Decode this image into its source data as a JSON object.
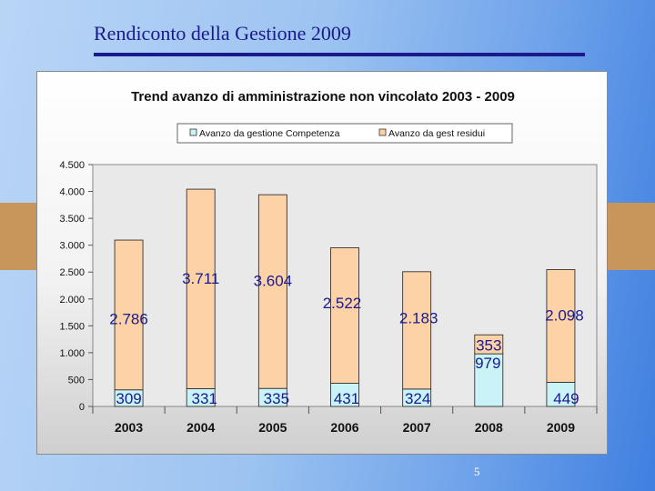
{
  "slide_title": "Rendiconto della Gestione 2009",
  "page_number": "5",
  "colors": {
    "competenza": "#c9f3f7",
    "residui": "#fcd2a6",
    "title": "#1a1a8c",
    "side_accent": "#c8965a"
  },
  "chart_data": {
    "type": "bar",
    "stacked": true,
    "title": "Trend avanzo di amministrazione non vincolato 2003 - 2009",
    "categories": [
      "2003",
      "2004",
      "2005",
      "2006",
      "2007",
      "2008",
      "2009"
    ],
    "series": [
      {
        "name": "Avanzo da gestione Competenza",
        "values": [
          309,
          331,
          335,
          431,
          324,
          979,
          449
        ],
        "labels": [
          "309",
          "331",
          "335",
          "431",
          "324",
          "979",
          "449"
        ]
      },
      {
        "name": "Avanzo da gest residui",
        "values": [
          2786,
          3711,
          3604,
          2522,
          2183,
          353,
          2098
        ],
        "labels": [
          "2.786",
          "3.711",
          "3.604",
          "2.522",
          "2.183",
          "353",
          "2.098"
        ]
      }
    ],
    "ylim": [
      0,
      4500
    ],
    "yticks": [
      0,
      500,
      1000,
      1500,
      2000,
      2500,
      3000,
      3500,
      4000,
      4500
    ],
    "ytick_labels": [
      "0",
      "500",
      "1.000",
      "1.500",
      "2.000",
      "2.500",
      "3.000",
      "3.500",
      "4.000",
      "4.500"
    ],
    "xlabel": "",
    "ylabel": "",
    "legend": "top-center",
    "grid": false
  }
}
